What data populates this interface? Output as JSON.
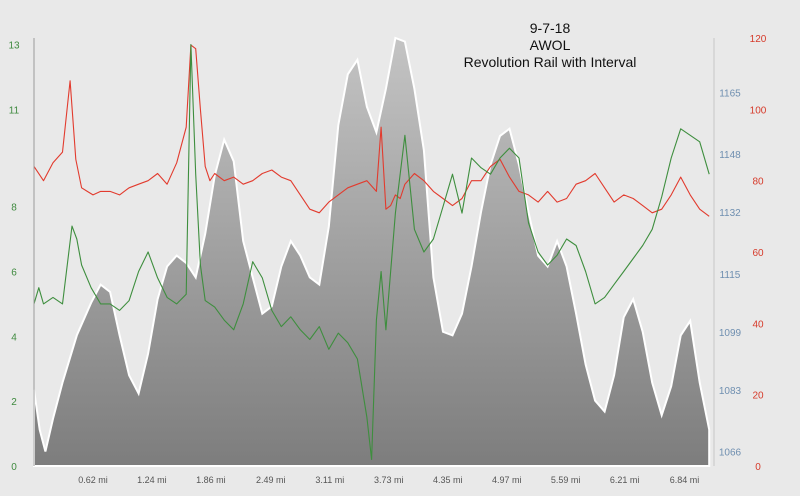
{
  "title_lines": [
    "9-7-18",
    "AWOL",
    "Revolution Rail with Interval"
  ],
  "chart_data": {
    "type": "area",
    "title": "9-7-18 AWOL Revolution Rail with Interval",
    "x_ticks": [
      "0.62 mi",
      "1.24 mi",
      "1.86 mi",
      "2.49 mi",
      "3.11 mi",
      "3.73 mi",
      "4.35 mi",
      "4.97 mi",
      "5.59 mi",
      "6.21 mi",
      "6.84 mi"
    ],
    "x_tick_values": [
      0.62,
      1.24,
      1.86,
      2.49,
      3.11,
      3.73,
      4.35,
      4.97,
      5.59,
      6.21,
      6.84
    ],
    "xlim": [
      0.0,
      7.15
    ],
    "axes": {
      "left": {
        "ticks": [
          "0",
          "2",
          "4",
          "6",
          "8",
          "11",
          "13"
        ],
        "tick_values": [
          0,
          2,
          4,
          6,
          8,
          11,
          13
        ],
        "ylim": [
          0,
          13.2
        ],
        "color": "#3f8a3f"
      },
      "right_inner": {
        "ticks": [
          "1066",
          "1083",
          "1099",
          "1115",
          "1132",
          "1148",
          "1165"
        ],
        "tick_values": [
          1066,
          1083,
          1099,
          1115,
          1132,
          1148,
          1165
        ],
        "ylim": [
          1062,
          1180
        ],
        "color": "#6f8fb0"
      },
      "right_outer": {
        "ticks": [
          "0",
          "20",
          "40",
          "60",
          "80",
          "100",
          "120"
        ],
        "tick_values": [
          0,
          20,
          40,
          60,
          80,
          100,
          120
        ],
        "ylim": [
          0,
          120
        ],
        "color": "#d63a2a"
      }
    },
    "series": [
      {
        "axis": "right_inner",
        "kind": "area",
        "color": "#8a8a8a",
        "x": [
          0.0,
          0.06,
          0.12,
          0.2,
          0.3,
          0.45,
          0.6,
          0.7,
          0.8,
          0.9,
          1.0,
          1.1,
          1.2,
          1.3,
          1.4,
          1.5,
          1.6,
          1.7,
          1.8,
          1.9,
          2.0,
          2.1,
          2.2,
          2.3,
          2.4,
          2.5,
          2.6,
          2.7,
          2.8,
          2.9,
          3.0,
          3.1,
          3.2,
          3.3,
          3.4,
          3.5,
          3.6,
          3.7,
          3.8,
          3.9,
          4.0,
          4.1,
          4.2,
          4.3,
          4.4,
          4.5,
          4.6,
          4.7,
          4.8,
          4.9,
          5.0,
          5.1,
          5.2,
          5.3,
          5.4,
          5.5,
          5.6,
          5.7,
          5.8,
          5.9,
          6.0,
          6.1,
          6.2,
          6.3,
          6.4,
          6.5,
          6.6,
          6.7,
          6.8,
          6.9,
          7.0,
          7.1
        ],
        "y": [
          1083,
          1072,
          1066,
          1075,
          1085,
          1098,
          1107,
          1112,
          1110,
          1098,
          1087,
          1082,
          1093,
          1108,
          1117,
          1120,
          1118,
          1114,
          1126,
          1142,
          1152,
          1146,
          1124,
          1114,
          1104,
          1106,
          1117,
          1124,
          1120,
          1114,
          1112,
          1128,
          1156,
          1170,
          1174,
          1161,
          1154,
          1166,
          1180,
          1179,
          1166,
          1149,
          1114,
          1099,
          1098,
          1104,
          1117,
          1132,
          1145,
          1153,
          1155,
          1145,
          1132,
          1120,
          1117,
          1124,
          1117,
          1104,
          1090,
          1080,
          1077,
          1087,
          1103,
          1108,
          1099,
          1085,
          1076,
          1084,
          1098,
          1102,
          1085,
          1072
        ]
      },
      {
        "axis": "right_outer",
        "kind": "line",
        "color": "#e23b2e",
        "x": [
          0.0,
          0.1,
          0.2,
          0.3,
          0.38,
          0.44,
          0.5,
          0.56,
          0.62,
          0.7,
          0.8,
          0.9,
          1.0,
          1.1,
          1.2,
          1.3,
          1.4,
          1.5,
          1.6,
          1.65,
          1.7,
          1.75,
          1.8,
          1.85,
          1.9,
          2.0,
          2.1,
          2.2,
          2.3,
          2.4,
          2.5,
          2.6,
          2.7,
          2.8,
          2.9,
          3.0,
          3.1,
          3.2,
          3.3,
          3.4,
          3.5,
          3.6,
          3.65,
          3.7,
          3.75,
          3.8,
          3.85,
          3.9,
          4.0,
          4.1,
          4.2,
          4.3,
          4.4,
          4.5,
          4.6,
          4.7,
          4.8,
          4.9,
          5.0,
          5.1,
          5.2,
          5.3,
          5.4,
          5.5,
          5.6,
          5.7,
          5.8,
          5.9,
          6.0,
          6.1,
          6.2,
          6.3,
          6.4,
          6.5,
          6.6,
          6.7,
          6.8,
          6.9,
          7.0,
          7.1
        ],
        "y": [
          84,
          80,
          85,
          88,
          108,
          86,
          78,
          77,
          76,
          77,
          77,
          76,
          78,
          79,
          80,
          82,
          79,
          85,
          95,
          118,
          117,
          100,
          84,
          80,
          82,
          80,
          81,
          79,
          80,
          82,
          83,
          81,
          80,
          76,
          72,
          71,
          74,
          76,
          78,
          79,
          80,
          77,
          95,
          72,
          73,
          76,
          75,
          79,
          82,
          80,
          77,
          75,
          73,
          75,
          80,
          80,
          84,
          86,
          81,
          77,
          76,
          74,
          77,
          74,
          75,
          79,
          80,
          82,
          78,
          74,
          76,
          75,
          73,
          71,
          72,
          76,
          81,
          76,
          72,
          70
        ]
      },
      {
        "axis": "left",
        "kind": "line",
        "color": "#3e8e3e",
        "x": [
          0.0,
          0.05,
          0.1,
          0.2,
          0.3,
          0.4,
          0.45,
          0.5,
          0.6,
          0.7,
          0.8,
          0.9,
          1.0,
          1.1,
          1.2,
          1.3,
          1.4,
          1.5,
          1.6,
          1.65,
          1.7,
          1.75,
          1.8,
          1.9,
          2.0,
          2.1,
          2.2,
          2.3,
          2.4,
          2.5,
          2.6,
          2.7,
          2.8,
          2.9,
          3.0,
          3.1,
          3.2,
          3.3,
          3.4,
          3.5,
          3.55,
          3.6,
          3.65,
          3.7,
          3.8,
          3.9,
          4.0,
          4.1,
          4.2,
          4.3,
          4.4,
          4.5,
          4.6,
          4.7,
          4.8,
          4.9,
          5.0,
          5.1,
          5.2,
          5.3,
          5.4,
          5.5,
          5.6,
          5.7,
          5.8,
          5.9,
          6.0,
          6.1,
          6.2,
          6.3,
          6.4,
          6.5,
          6.6,
          6.7,
          6.8,
          6.9,
          7.0,
          7.1
        ],
        "y": [
          5.0,
          5.5,
          5.0,
          5.2,
          5.0,
          7.4,
          7.0,
          6.2,
          5.5,
          5.0,
          5.0,
          4.8,
          5.1,
          6.0,
          6.6,
          5.8,
          5.2,
          5.0,
          5.3,
          13.0,
          9.0,
          6.2,
          5.1,
          4.9,
          4.5,
          4.2,
          5.0,
          6.3,
          5.8,
          4.8,
          4.3,
          4.6,
          4.2,
          3.9,
          4.3,
          3.6,
          4.1,
          3.8,
          3.3,
          1.5,
          0.2,
          4.5,
          6.0,
          4.2,
          7.8,
          10.2,
          7.3,
          6.6,
          7.0,
          8.0,
          9.0,
          7.8,
          9.5,
          9.2,
          9.0,
          9.5,
          9.8,
          9.5,
          7.5,
          6.6,
          6.2,
          6.5,
          7.0,
          6.8,
          6.0,
          5.0,
          5.2,
          5.6,
          6.0,
          6.4,
          6.8,
          7.3,
          8.3,
          9.5,
          10.4,
          10.2,
          10.0,
          9.0
        ]
      }
    ],
    "grid": false
  }
}
